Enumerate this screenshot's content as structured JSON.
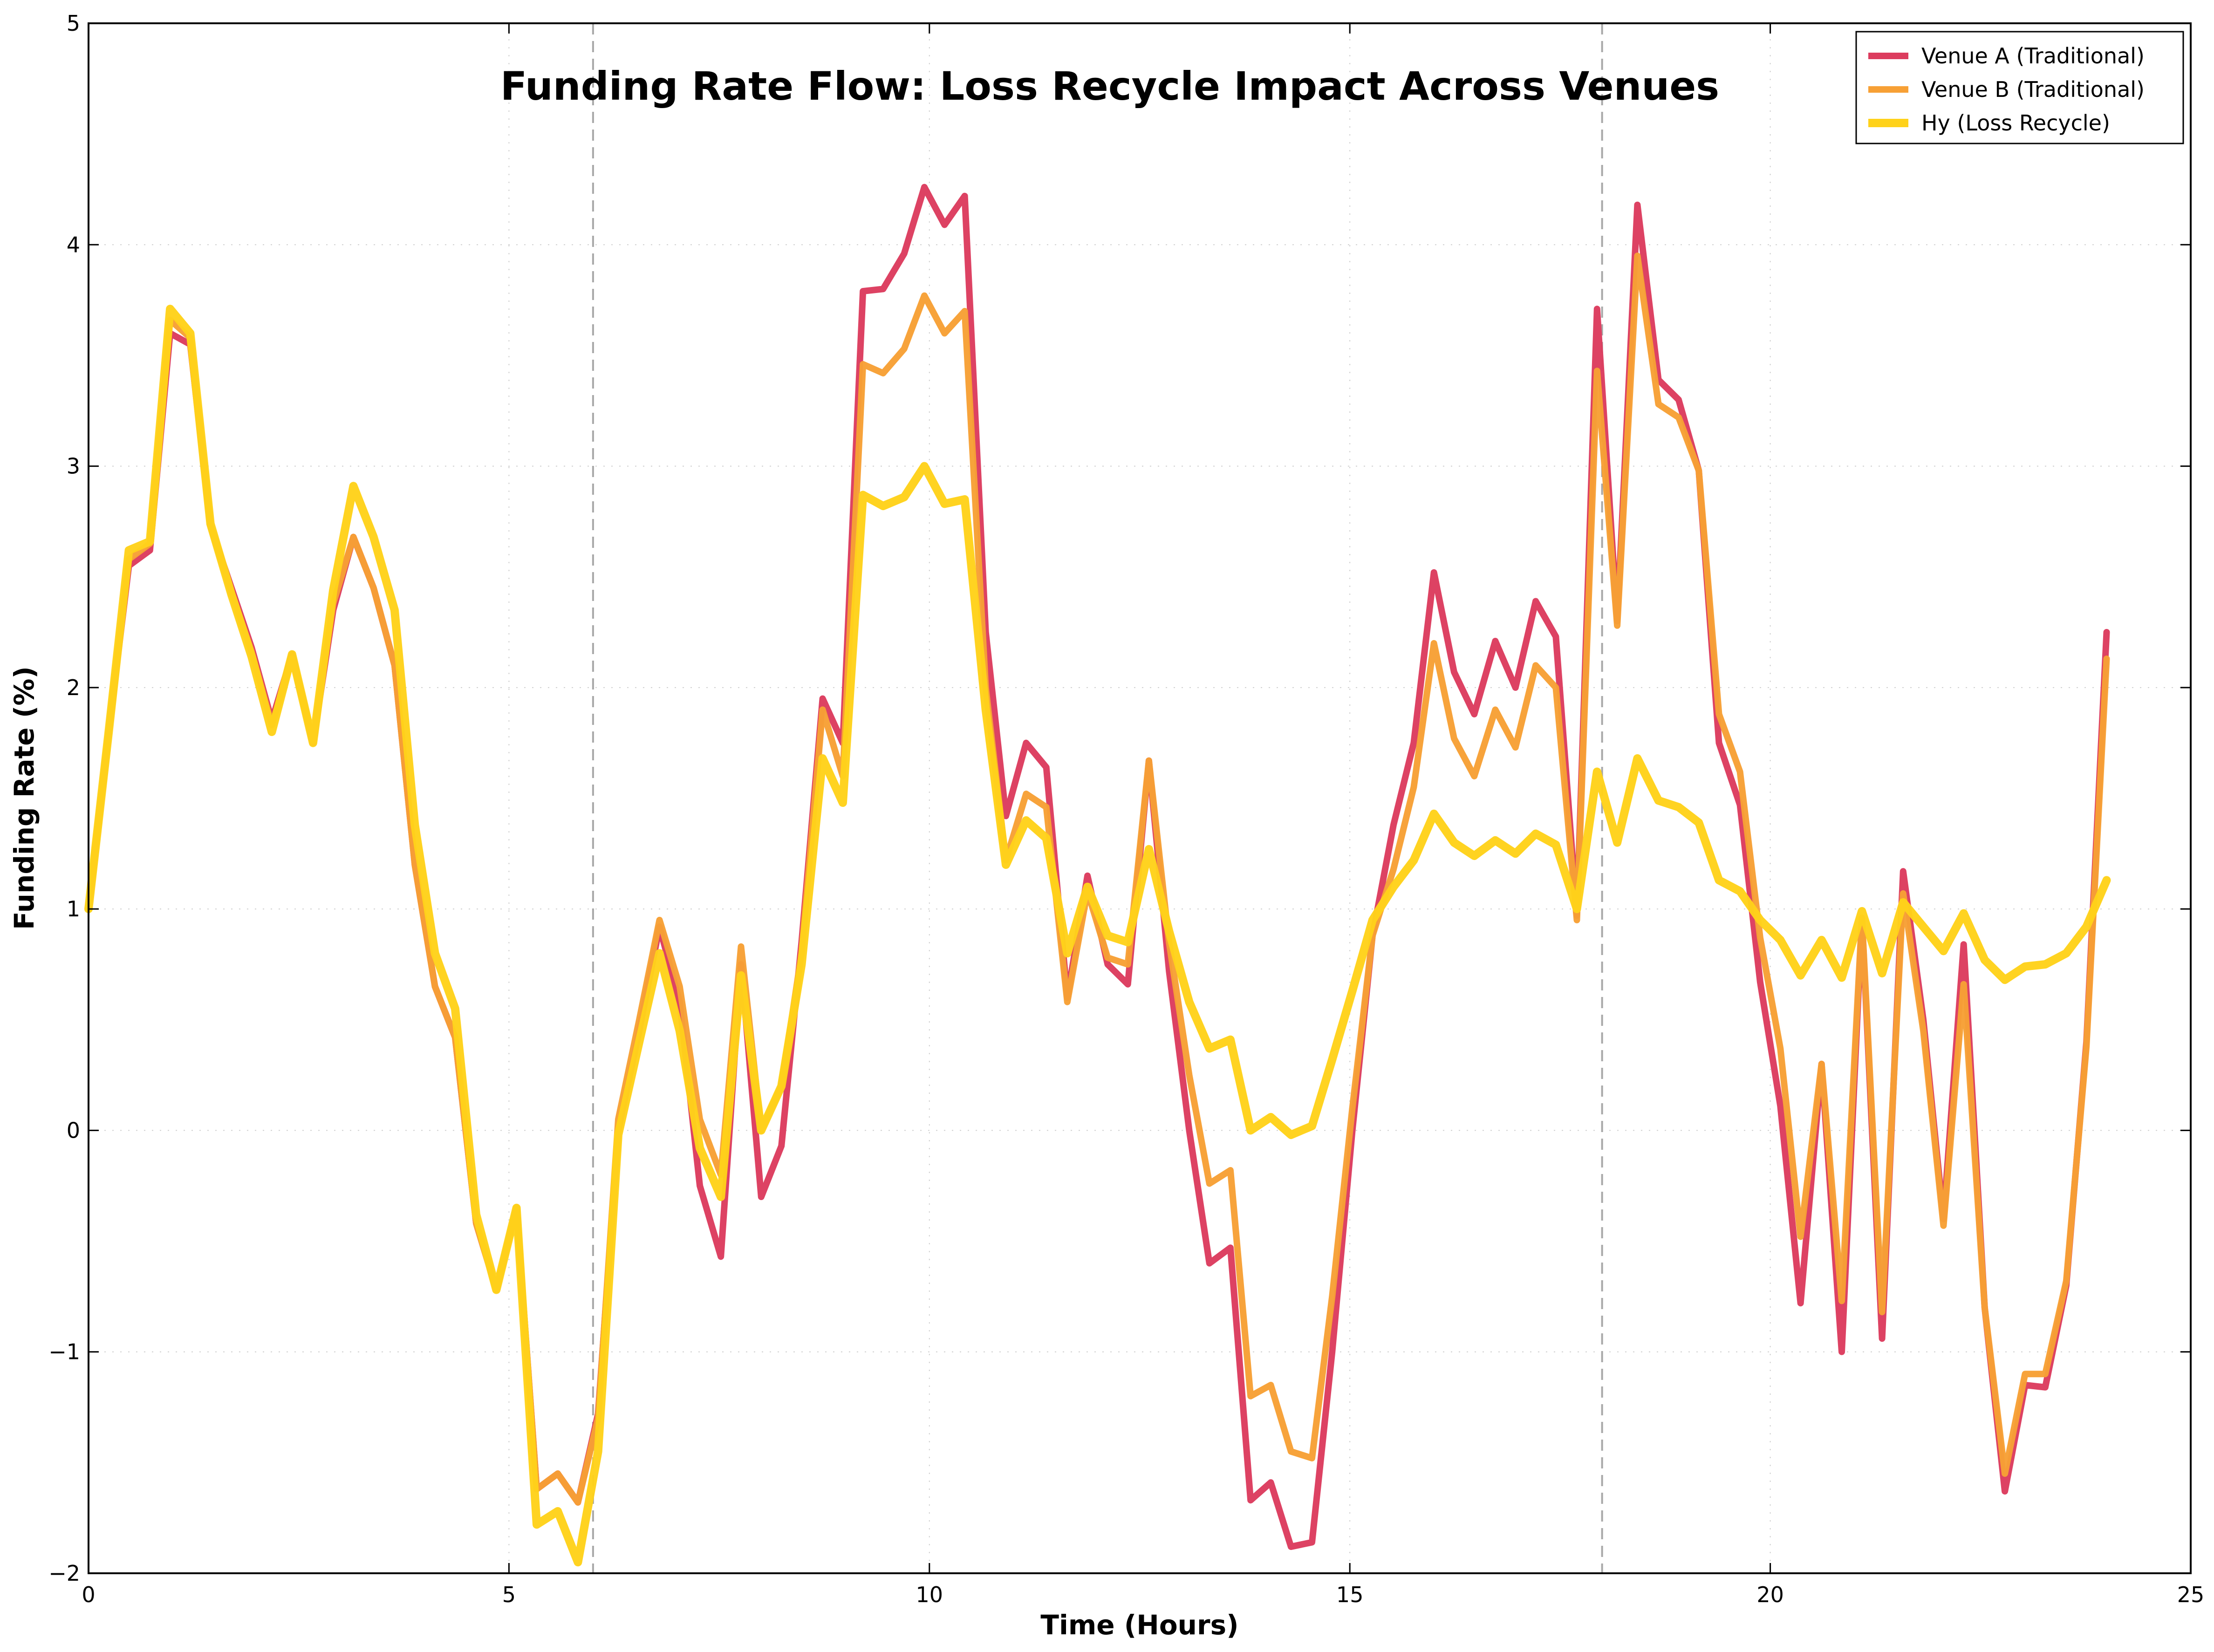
{
  "chart_data": {
    "type": "line",
    "title": "Funding Rate Flow: Loss Recycle Impact Across Venues",
    "xlabel": "Time (Hours)",
    "ylabel": "Funding Rate (%)",
    "xlim": [
      0,
      25
    ],
    "ylim": [
      -2,
      5
    ],
    "xticks": [
      0,
      5,
      10,
      15,
      20,
      25
    ],
    "yticks": [
      -2,
      -1,
      0,
      1,
      2,
      3,
      4,
      5
    ],
    "xtick_labels": [
      "0",
      "5",
      "10",
      "15",
      "20",
      "25"
    ],
    "ytick_labels": [
      "−2",
      "−1",
      "0",
      "1",
      "2",
      "3",
      "4",
      "5"
    ],
    "grid": true,
    "legend_position": "top-right",
    "reference_lines_x": [
      6,
      18
    ],
    "x": [
      0,
      0.24,
      0.48,
      0.73,
      0.97,
      1.21,
      1.45,
      1.7,
      1.94,
      2.18,
      2.42,
      2.67,
      2.91,
      3.15,
      3.39,
      3.64,
      3.88,
      4.12,
      4.36,
      4.61,
      4.85,
      5.09,
      5.33,
      5.58,
      5.82,
      6.06,
      6.3,
      6.55,
      6.79,
      7.03,
      7.27,
      7.52,
      7.76,
      8.0,
      8.24,
      8.48,
      8.73,
      8.97,
      9.21,
      9.45,
      9.7,
      9.94,
      10.18,
      10.42,
      10.67,
      10.91,
      11.15,
      11.39,
      11.64,
      11.88,
      12.12,
      12.36,
      12.61,
      12.85,
      13.09,
      13.33,
      13.58,
      13.82,
      14.06,
      14.3,
      14.55,
      14.79,
      15.03,
      15.27,
      15.52,
      15.76,
      16.0,
      16.24,
      16.48,
      16.73,
      16.97,
      17.21,
      17.45,
      17.7,
      17.94,
      18.18,
      18.42,
      18.67,
      18.91,
      19.15,
      19.39,
      19.64,
      19.88,
      20.12,
      20.36,
      20.61,
      20.85,
      21.09,
      21.33,
      21.58,
      21.82,
      22.06,
      22.3,
      22.55,
      22.79,
      23.03,
      23.27,
      23.52,
      23.76,
      24.0
    ],
    "series": [
      {
        "name": "Venue A (Traditional)",
        "color": "#dc3c5e",
        "width": 14,
        "values": [
          1.0,
          1.8,
          2.55,
          2.62,
          3.6,
          3.55,
          2.73,
          2.45,
          2.18,
          1.85,
          2.15,
          1.75,
          2.35,
          2.68,
          2.45,
          2.1,
          1.2,
          0.65,
          0.42,
          -0.42,
          -0.72,
          -0.35,
          -1.62,
          -1.55,
          -1.68,
          -1.28,
          0.0,
          0.45,
          0.92,
          0.58,
          -0.25,
          -0.57,
          0.75,
          -0.3,
          -0.07,
          0.85,
          1.95,
          1.75,
          3.79,
          3.8,
          3.96,
          4.26,
          4.09,
          4.22,
          2.25,
          1.42,
          1.75,
          1.64,
          0.6,
          1.15,
          0.75,
          0.66,
          1.67,
          0.72,
          0.0,
          -0.6,
          -0.53,
          -1.67,
          -1.59,
          -1.88,
          -1.86,
          -1.0,
          0.0,
          0.88,
          1.38,
          1.75,
          2.52,
          2.07,
          1.88,
          2.21,
          2.0,
          2.39,
          2.23,
          0.97,
          3.71,
          2.3,
          4.18,
          3.39,
          3.3,
          2.98,
          1.75,
          1.47,
          0.67,
          0.11,
          -0.78,
          0.3,
          -1.0,
          0.96,
          -0.94,
          1.17,
          0.5,
          -0.4,
          0.84,
          -0.8,
          -1.63,
          -1.15,
          -1.16,
          -0.7,
          0.4,
          2.25
        ]
      },
      {
        "name": "Venue B (Traditional)",
        "color": "#f7a035",
        "width": 14,
        "values": [
          1.0,
          1.8,
          2.58,
          2.65,
          3.66,
          3.58,
          2.73,
          2.43,
          2.16,
          1.83,
          2.13,
          1.76,
          2.38,
          2.68,
          2.45,
          2.1,
          1.2,
          0.65,
          0.42,
          -0.42,
          -0.72,
          -0.35,
          -1.62,
          -1.55,
          -1.68,
          -1.3,
          0.05,
          0.5,
          0.95,
          0.65,
          0.05,
          -0.2,
          0.83,
          0.0,
          0.2,
          0.8,
          1.9,
          1.6,
          3.46,
          3.42,
          3.53,
          3.77,
          3.6,
          3.7,
          2.0,
          1.22,
          1.52,
          1.46,
          0.58,
          1.08,
          0.78,
          0.75,
          1.67,
          0.85,
          0.25,
          -0.24,
          -0.18,
          -1.2,
          -1.15,
          -1.45,
          -1.48,
          -0.75,
          0.1,
          0.88,
          1.18,
          1.55,
          2.2,
          1.77,
          1.6,
          1.9,
          1.73,
          2.1,
          2.0,
          0.95,
          3.43,
          2.28,
          3.95,
          3.28,
          3.22,
          2.98,
          1.88,
          1.62,
          0.87,
          0.37,
          -0.48,
          0.3,
          -0.77,
          0.96,
          -0.82,
          1.07,
          0.45,
          -0.43,
          0.66,
          -0.8,
          -1.55,
          -1.1,
          -1.1,
          -0.68,
          0.38,
          2.13
        ]
      },
      {
        "name": "Hy (Loss Recycle)",
        "color": "#ffd21a",
        "width": 18,
        "values": [
          1.0,
          1.8,
          2.62,
          2.66,
          3.71,
          3.6,
          2.74,
          2.42,
          2.14,
          1.8,
          2.15,
          1.75,
          2.44,
          2.91,
          2.68,
          2.35,
          1.38,
          0.8,
          0.55,
          -0.38,
          -0.72,
          -0.35,
          -1.78,
          -1.72,
          -1.95,
          -1.45,
          -0.02,
          0.4,
          0.8,
          0.45,
          -0.08,
          -0.3,
          0.7,
          0.0,
          0.2,
          0.75,
          1.68,
          1.48,
          2.87,
          2.82,
          2.86,
          3.0,
          2.83,
          2.85,
          1.9,
          1.2,
          1.4,
          1.32,
          0.8,
          1.1,
          0.88,
          0.85,
          1.27,
          0.9,
          0.58,
          0.37,
          0.41,
          0.0,
          0.06,
          -0.02,
          0.02,
          0.32,
          0.63,
          0.95,
          1.1,
          1.22,
          1.43,
          1.3,
          1.24,
          1.31,
          1.25,
          1.34,
          1.29,
          1.0,
          1.62,
          1.3,
          1.68,
          1.49,
          1.46,
          1.39,
          1.13,
          1.08,
          0.95,
          0.86,
          0.7,
          0.86,
          0.69,
          0.99,
          0.71,
          1.03,
          0.92,
          0.81,
          0.98,
          0.77,
          0.68,
          0.74,
          0.75,
          0.8,
          0.92,
          1.13
        ]
      }
    ]
  }
}
